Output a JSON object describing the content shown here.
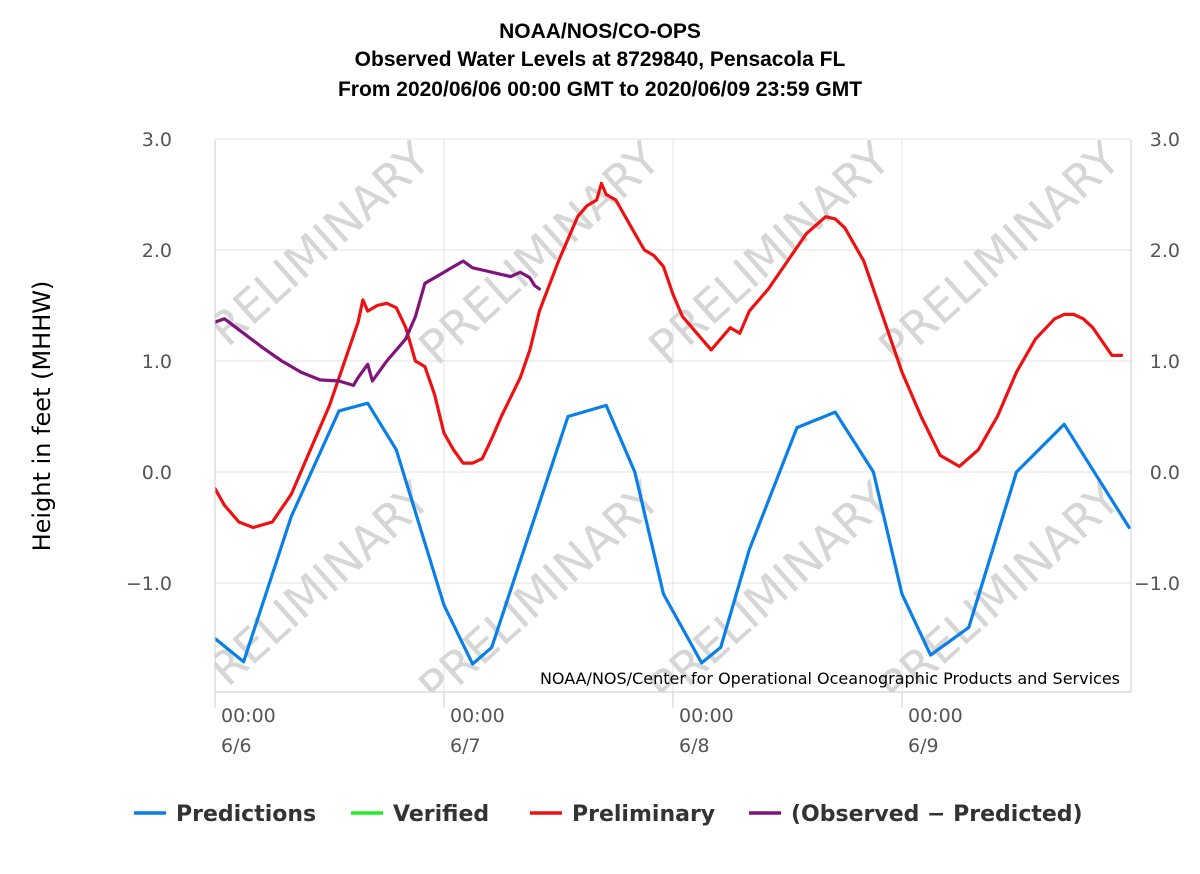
{
  "chart_data": {
    "type": "line",
    "title": [
      "NOAA/NOS/CO-OPS",
      "Observed Water Levels at 8729840, Pensacola FL",
      "From 2020/06/06 00:00 GMT to 2020/06/09 23:59 GMT"
    ],
    "ylabel": "Height in feet (MHHW)",
    "y_ticks": [
      3.0,
      2.0,
      1.0,
      0.0,
      -1.0
    ],
    "y_tick_labels": [
      "3.0",
      "2.0",
      "1.0",
      "0.0",
      "−1.0"
    ],
    "ylim": [
      -2.0,
      3.0
    ],
    "xlim": [
      0,
      96
    ],
    "x_ticks": [
      {
        "hour": 0,
        "time": "00:00",
        "date": "6/6"
      },
      {
        "hour": 24,
        "time": "00:00",
        "date": "6/7"
      },
      {
        "hour": 48,
        "time": "00:00",
        "date": "6/8"
      },
      {
        "hour": 72,
        "time": "00:00",
        "date": "6/9"
      }
    ],
    "watermark": "PRELIMINARY",
    "credit": "NOAA/NOS/Center for Operational Oceanographic Products and Services",
    "grid": true,
    "legend_position": "bottom",
    "series": [
      {
        "name": "Predictions",
        "color": "#0a7fe8",
        "x": [
          0,
          3,
          8,
          13,
          16,
          19,
          24,
          27,
          29,
          32,
          37,
          41,
          44,
          47,
          51,
          53,
          56,
          61,
          65,
          69,
          72,
          75,
          79,
          84,
          89,
          95.8
        ],
        "y": [
          -1.5,
          -1.71,
          -0.4,
          0.55,
          0.62,
          0.2,
          -1.2,
          -1.73,
          -1.58,
          -0.8,
          0.5,
          0.6,
          0.0,
          -1.1,
          -1.72,
          -1.58,
          -0.7,
          0.4,
          0.54,
          0.0,
          -1.1,
          -1.65,
          -1.4,
          0.0,
          0.43,
          -0.5
        ]
      },
      {
        "name": "Verified",
        "color": "#22ee22",
        "x": [],
        "y": []
      },
      {
        "name": "Preliminary",
        "color": "#ee1111",
        "x": [
          0,
          1,
          2.5,
          4,
          6,
          8,
          10,
          12,
          14,
          15,
          15.5,
          16,
          17,
          18,
          19,
          20,
          21,
          22,
          23,
          24,
          25,
          26,
          27,
          28,
          29,
          30,
          32,
          33,
          34,
          36,
          38,
          39,
          40,
          40.5,
          41,
          42,
          43,
          44,
          45,
          46,
          47,
          48,
          49,
          50,
          51,
          52,
          53,
          54,
          55,
          56,
          58,
          60,
          62,
          64,
          65,
          66,
          68,
          70,
          72,
          74,
          76,
          78,
          80,
          82,
          84,
          86,
          88,
          89,
          90,
          91,
          92,
          94,
          95
        ],
        "y": [
          -0.15,
          -0.3,
          -0.45,
          -0.5,
          -0.45,
          -0.2,
          0.2,
          0.6,
          1.1,
          1.35,
          1.55,
          1.45,
          1.5,
          1.52,
          1.48,
          1.3,
          1.0,
          0.95,
          0.7,
          0.35,
          0.2,
          0.08,
          0.08,
          0.12,
          0.3,
          0.5,
          0.85,
          1.1,
          1.45,
          1.9,
          2.3,
          2.4,
          2.45,
          2.6,
          2.5,
          2.45,
          2.3,
          2.15,
          2.0,
          1.95,
          1.85,
          1.6,
          1.4,
          1.3,
          1.2,
          1.1,
          1.2,
          1.3,
          1.25,
          1.45,
          1.65,
          1.9,
          2.15,
          2.3,
          2.28,
          2.2,
          1.9,
          1.4,
          0.9,
          0.5,
          0.15,
          0.05,
          0.2,
          0.5,
          0.9,
          1.2,
          1.38,
          1.42,
          1.42,
          1.38,
          1.3,
          1.05,
          1.05
        ]
      },
      {
        "name": "(Observed − Predicted)",
        "color": "#80147c",
        "x": [
          0,
          1,
          3,
          5,
          7,
          9,
          11,
          13,
          14.5,
          15,
          16,
          16.5,
          17,
          18,
          19,
          20,
          21,
          22,
          23,
          24,
          25,
          26,
          27,
          28,
          29,
          30,
          31,
          32,
          33,
          33.5,
          34
        ],
        "y": [
          1.35,
          1.38,
          1.25,
          1.12,
          1.0,
          0.9,
          0.83,
          0.82,
          0.78,
          0.85,
          0.97,
          0.82,
          0.88,
          1.0,
          1.1,
          1.2,
          1.4,
          1.7,
          1.75,
          1.8,
          1.85,
          1.9,
          1.84,
          1.82,
          1.8,
          1.78,
          1.76,
          1.8,
          1.75,
          1.68,
          1.65
        ]
      }
    ]
  }
}
